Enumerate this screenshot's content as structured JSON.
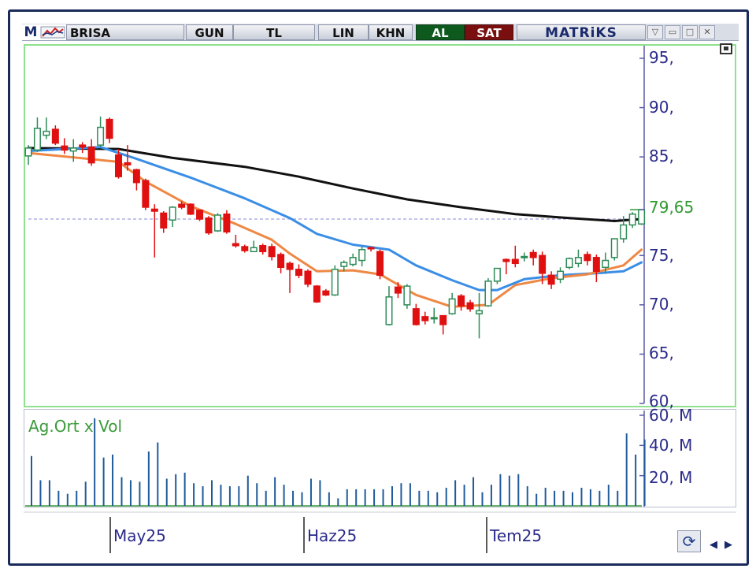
{
  "toolbar": {
    "logo": "M",
    "symbol": "BRISA",
    "buttons": {
      "period": "GUN",
      "currency": "TL",
      "scale": "LIN",
      "style": "KHN",
      "buy": "AL",
      "sell": "SAT"
    },
    "brand": "MATRiKS"
  },
  "colors": {
    "up_candle": "#2e8b57",
    "down_candle": "#e01010",
    "ma_fast": "#ee8844",
    "ma_mid": "#3a8ee6",
    "ma_slow": "#111111",
    "volume": "#1f5a9a",
    "axis_text": "#2a2a8a",
    "last_price": "#2e9a2e",
    "frame": "#1a2a5a"
  },
  "chart_data": [
    {
      "type": "candlestick",
      "symbol": "BRISA",
      "x_labels": [
        "May25",
        "Haz25",
        "Tem25"
      ],
      "y_ticks": [
        "95,",
        "90,",
        "85,",
        "79,65",
        "75,",
        "70,",
        "65,",
        "60,"
      ],
      "y_tick_values": [
        95,
        90,
        85,
        75,
        70,
        65,
        60
      ],
      "ylim": [
        60,
        96
      ],
      "last_price_value": 79.65,
      "last_price_label": "79,65",
      "reference_line": 78.7,
      "candles": [
        [
          85.1,
          86.2,
          84.2,
          85.9
        ],
        [
          85.7,
          89.0,
          85.5,
          87.9
        ],
        [
          87.2,
          89.0,
          86.8,
          87.6
        ],
        [
          87.8,
          88.2,
          86.2,
          86.4
        ],
        [
          86.1,
          86.9,
          85.3,
          85.7
        ],
        [
          85.6,
          86.8,
          84.5,
          85.9
        ],
        [
          86.2,
          86.5,
          85.4,
          86.0
        ],
        [
          86.0,
          86.8,
          84.1,
          84.4
        ],
        [
          86.2,
          89.1,
          86.0,
          88.0
        ],
        [
          88.8,
          89.0,
          86.4,
          86.9
        ],
        [
          85.2,
          85.8,
          82.8,
          83.0
        ],
        [
          84.4,
          86.2,
          83.6,
          84.2
        ],
        [
          83.7,
          83.8,
          81.6,
          82.4
        ],
        [
          82.6,
          82.8,
          79.6,
          79.9
        ],
        [
          79.7,
          80.2,
          74.8,
          79.5
        ],
        [
          79.3,
          79.5,
          77.3,
          77.8
        ],
        [
          78.6,
          80.0,
          77.9,
          79.9
        ],
        [
          80.2,
          80.5,
          79.7,
          79.9
        ],
        [
          80.2,
          80.3,
          79.1,
          79.2
        ],
        [
          79.6,
          79.6,
          78.5,
          78.7
        ],
        [
          78.8,
          79.0,
          77.1,
          77.3
        ],
        [
          77.5,
          79.3,
          77.4,
          79.1
        ],
        [
          79.2,
          79.6,
          77.2,
          77.4
        ],
        [
          76.2,
          77.1,
          75.8,
          76.0
        ],
        [
          75.9,
          76.1,
          75.3,
          75.5
        ],
        [
          75.4,
          76.5,
          75.4,
          75.8
        ],
        [
          76.0,
          76.2,
          75.1,
          75.4
        ],
        [
          75.9,
          76.2,
          74.5,
          74.9
        ],
        [
          75.1,
          75.3,
          73.2,
          73.8
        ],
        [
          74.2,
          74.4,
          71.2,
          73.6
        ],
        [
          73.6,
          74.1,
          72.7,
          73.0
        ],
        [
          73.4,
          73.6,
          71.8,
          72.1
        ],
        [
          71.9,
          72.0,
          70.2,
          70.3
        ],
        [
          71.4,
          71.6,
          70.9,
          71.0
        ],
        [
          71.0,
          74.0,
          70.9,
          73.6
        ],
        [
          73.9,
          74.5,
          73.4,
          74.3
        ],
        [
          74.1,
          75.2,
          73.9,
          74.8
        ],
        [
          74.5,
          75.9,
          73.9,
          75.6
        ],
        [
          75.8,
          75.9,
          75.4,
          75.7
        ],
        [
          75.4,
          75.6,
          72.6,
          73.0
        ],
        [
          68.0,
          71.9,
          67.9,
          70.8
        ],
        [
          71.8,
          72.3,
          70.7,
          71.2
        ],
        [
          70.0,
          72.1,
          69.6,
          71.9
        ],
        [
          69.6,
          70.1,
          67.9,
          68.0
        ],
        [
          68.8,
          69.3,
          68.0,
          68.4
        ],
        [
          68.6,
          69.7,
          68.1,
          68.7
        ],
        [
          68.9,
          68.9,
          67.0,
          68.0
        ],
        [
          69.1,
          71.2,
          69.0,
          70.6
        ],
        [
          70.9,
          71.1,
          69.4,
          69.9
        ],
        [
          70.2,
          70.5,
          69.3,
          69.6
        ],
        [
          69.1,
          71.2,
          66.6,
          69.4
        ],
        [
          69.9,
          72.7,
          69.8,
          72.4
        ],
        [
          72.4,
          73.7,
          72.1,
          73.7
        ],
        [
          74.6,
          74.7,
          73.1,
          74.4
        ],
        [
          74.6,
          76.0,
          73.8,
          74.2
        ],
        [
          74.8,
          75.3,
          74.4,
          74.9
        ],
        [
          75.3,
          75.6,
          74.0,
          74.8
        ],
        [
          75.0,
          75.4,
          72.1,
          73.2
        ],
        [
          73.0,
          73.4,
          71.6,
          72.1
        ],
        [
          72.6,
          73.8,
          72.2,
          73.4
        ],
        [
          73.8,
          74.8,
          73.6,
          74.7
        ],
        [
          74.2,
          75.6,
          73.8,
          74.8
        ],
        [
          75.1,
          75.4,
          74.0,
          74.5
        ],
        [
          74.8,
          75.1,
          72.3,
          73.4
        ],
        [
          73.8,
          75.3,
          73.2,
          74.5
        ],
        [
          74.8,
          76.7,
          74.5,
          76.7
        ],
        [
          76.7,
          79.0,
          76.3,
          78.1
        ],
        [
          78.1,
          79.4,
          77.8,
          79.2
        ],
        [
          78.2,
          79.7,
          78.1,
          79.65
        ]
      ],
      "ma_fast": [
        [
          0,
          85.4
        ],
        [
          10,
          84.5
        ],
        [
          13,
          82.5
        ],
        [
          18,
          80.0
        ],
        [
          23,
          78.2
        ],
        [
          27,
          76.6
        ],
        [
          29,
          75.2
        ],
        [
          32,
          73.4
        ],
        [
          36,
          73.5
        ],
        [
          39,
          73.1
        ],
        [
          43,
          71.0
        ],
        [
          47,
          69.8
        ],
        [
          51,
          70.0
        ],
        [
          54,
          72.0
        ],
        [
          58,
          72.7
        ],
        [
          62,
          73.1
        ],
        [
          66,
          74.0
        ],
        [
          68,
          75.6
        ]
      ],
      "ma_mid": [
        [
          0,
          85.6
        ],
        [
          8,
          86.0
        ],
        [
          12,
          84.8
        ],
        [
          18,
          82.9
        ],
        [
          24,
          80.8
        ],
        [
          29,
          78.8
        ],
        [
          32,
          77.2
        ],
        [
          36,
          76.1
        ],
        [
          40,
          75.6
        ],
        [
          43,
          74.0
        ],
        [
          47,
          72.5
        ],
        [
          50,
          71.5
        ],
        [
          52,
          71.5
        ],
        [
          55,
          72.6
        ],
        [
          59,
          73.0
        ],
        [
          63,
          73.2
        ],
        [
          66,
          73.4
        ],
        [
          68,
          74.3
        ]
      ],
      "ma_slow": [
        [
          0,
          85.9
        ],
        [
          10,
          85.8
        ],
        [
          16,
          84.9
        ],
        [
          24,
          84.0
        ],
        [
          30,
          83.0
        ],
        [
          36,
          81.8
        ],
        [
          42,
          80.7
        ],
        [
          48,
          79.9
        ],
        [
          54,
          79.2
        ],
        [
          60,
          78.8
        ],
        [
          65,
          78.5
        ],
        [
          68,
          78.7
        ]
      ]
    },
    {
      "type": "bar",
      "title": "Ag.Ort x Vol",
      "y_ticks": [
        "60, M",
        "40, M",
        "20, M"
      ],
      "y_tick_values": [
        60,
        40,
        20
      ],
      "ylim": [
        0,
        60
      ],
      "values": [
        33,
        17,
        17,
        10,
        8,
        10,
        16,
        58,
        32,
        34,
        19,
        17,
        16,
        36,
        42,
        18,
        21,
        22,
        15,
        13,
        17,
        14,
        13,
        13,
        20,
        15,
        10,
        19,
        14,
        10,
        9,
        18,
        17,
        9,
        5,
        11,
        11,
        11,
        11,
        11,
        13,
        15,
        15,
        10,
        10,
        9,
        12,
        17,
        14,
        19,
        9,
        14,
        21,
        20,
        21,
        13,
        8,
        12,
        10,
        10,
        9,
        12,
        11,
        10,
        14,
        10,
        48,
        34,
        44
      ]
    }
  ]
}
